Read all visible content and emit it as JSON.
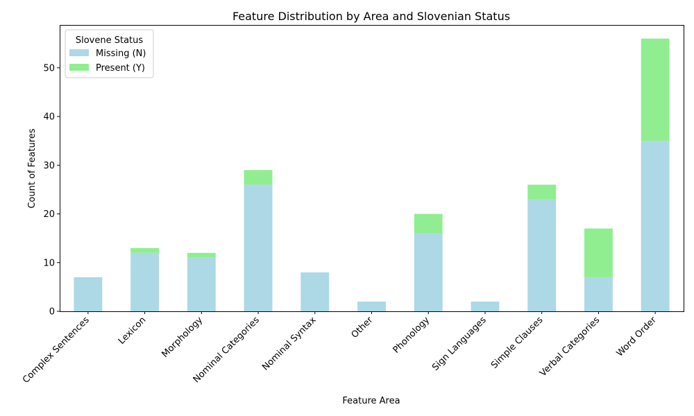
{
  "chart_data": {
    "type": "bar",
    "stacked": true,
    "title": "Feature Distribution by Area and Slovenian Status",
    "xlabel": "Feature Area",
    "ylabel": "Count of Features",
    "ylim": [
      0,
      58.8
    ],
    "yticks": [
      0,
      10,
      20,
      30,
      40,
      50
    ],
    "grid": false,
    "categories": [
      "Complex Sentences",
      "Lexicon",
      "Morphology",
      "Nominal Categories",
      "Nominal Syntax",
      "Other",
      "Phonology",
      "Sign Languages",
      "Simple Clauses",
      "Verbal Categories",
      "Word Order"
    ],
    "series": [
      {
        "name": "Missing (N)",
        "color": "#add8e6",
        "values": [
          7,
          12,
          11,
          26,
          8,
          2,
          16,
          2,
          23,
          7,
          35
        ]
      },
      {
        "name": "Present (Y)",
        "color": "#90ee90",
        "values": [
          0,
          1,
          1,
          3,
          0,
          0,
          4,
          0,
          3,
          10,
          21
        ]
      }
    ],
    "legend": {
      "title": "Slovene Status",
      "position": "top-left"
    }
  }
}
